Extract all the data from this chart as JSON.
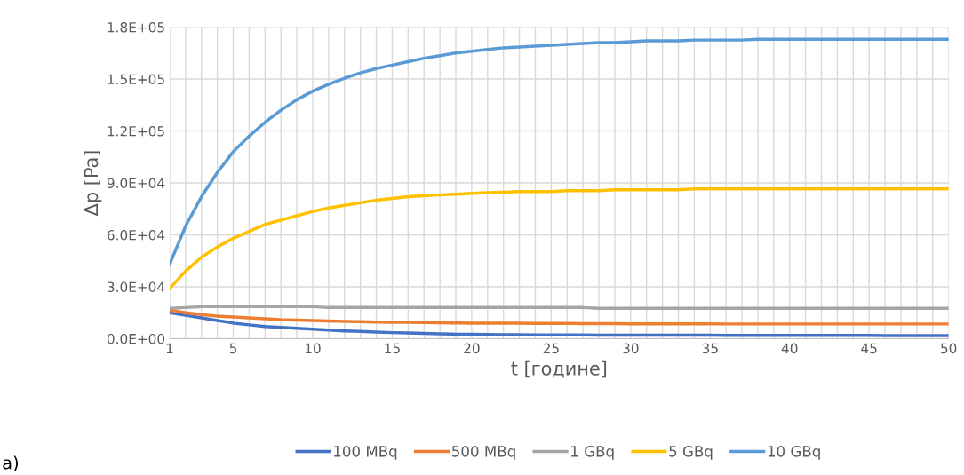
{
  "chart_data": {
    "type": "line",
    "xlabel": "t [године]",
    "ylabel": "Δp [Pa]",
    "categories": [
      "1",
      null,
      null,
      null,
      "5",
      null,
      null,
      null,
      null,
      "10",
      null,
      null,
      null,
      null,
      "15",
      null,
      null,
      null,
      null,
      "20",
      null,
      null,
      null,
      null,
      "25",
      null,
      null,
      null,
      null,
      "30",
      null,
      null,
      null,
      null,
      "35",
      null,
      null,
      null,
      null,
      "40",
      null,
      null,
      null,
      null,
      "45",
      null,
      null,
      null,
      null,
      "50"
    ],
    "ylim": [
      0,
      180000
    ],
    "yticks": [
      {
        "value": 0,
        "label": "0.0E+00"
      },
      {
        "value": 30000,
        "label": "3.0E+04"
      },
      {
        "value": 60000,
        "label": "6.0E+04"
      },
      {
        "value": 90000,
        "label": "9.0E+04"
      },
      {
        "value": 120000,
        "label": "1.2E+05"
      },
      {
        "value": 150000,
        "label": "1.5E+05"
      },
      {
        "value": 180000,
        "label": "1.8E+05"
      }
    ],
    "grid": true,
    "legend": "bottom",
    "marker": "none",
    "line_style": "solid",
    "series": [
      {
        "name": "100 MBq",
        "color": "#4472c4",
        "values": [
          15000,
          13500,
          12000,
          10500,
          9000,
          8000,
          7000,
          6500,
          6000,
          5500,
          5000,
          4500,
          4200,
          3800,
          3500,
          3300,
          3000,
          2800,
          2600,
          2500,
          2400,
          2300,
          2300,
          2200,
          2200,
          2100,
          2100,
          2000,
          2000,
          2000,
          2000,
          2000,
          2000,
          2000,
          2000,
          1900,
          1900,
          1900,
          1900,
          1900,
          1900,
          1900,
          1900,
          1900,
          1900,
          1800,
          1800,
          1800,
          1800,
          1800
        ]
      },
      {
        "name": "500 MBq",
        "color": "#ed7d31",
        "values": [
          16500,
          15000,
          14000,
          13000,
          12500,
          12000,
          11500,
          11000,
          10800,
          10500,
          10200,
          10000,
          9800,
          9600,
          9500,
          9400,
          9300,
          9200,
          9100,
          9000,
          9000,
          8900,
          8900,
          8800,
          8800,
          8800,
          8700,
          8700,
          8700,
          8600,
          8600,
          8600,
          8600,
          8600,
          8600,
          8500,
          8500,
          8500,
          8500,
          8500,
          8500,
          8500,
          8500,
          8500,
          8500,
          8500,
          8500,
          8500,
          8500,
          8500
        ]
      },
      {
        "name": "1 GBq",
        "color": "#a5a5a5",
        "values": [
          17500,
          18000,
          18500,
          18500,
          18500,
          18500,
          18500,
          18500,
          18500,
          18500,
          18000,
          18000,
          18000,
          18000,
          18000,
          18000,
          18000,
          18000,
          18000,
          18000,
          18000,
          18000,
          18000,
          18000,
          18000,
          18000,
          18000,
          17500,
          17500,
          17500,
          17500,
          17500,
          17500,
          17500,
          17500,
          17500,
          17500,
          17500,
          17500,
          17500,
          17500,
          17500,
          17500,
          17500,
          17500,
          17500,
          17500,
          17500,
          17500,
          17500
        ]
      },
      {
        "name": "5 GBq",
        "color": "#ffc000",
        "values": [
          29000,
          39000,
          47000,
          53000,
          58000,
          62000,
          66000,
          68500,
          71000,
          73500,
          75500,
          77000,
          78500,
          80000,
          81000,
          82000,
          82500,
          83000,
          83500,
          84000,
          84300,
          84600,
          85000,
          85000,
          85000,
          85500,
          85500,
          85500,
          86000,
          86000,
          86000,
          86000,
          86000,
          86500,
          86500,
          86500,
          86500,
          86500,
          86500,
          86500,
          86500,
          86500,
          86500,
          86500,
          86500,
          86500,
          86500,
          86500,
          86500,
          86500
        ]
      },
      {
        "name": "10 GBq",
        "color": "#5b9bd5",
        "values": [
          43000,
          65000,
          82000,
          96000,
          108000,
          117000,
          125000,
          132000,
          138000,
          143000,
          147000,
          150500,
          153500,
          156000,
          158000,
          160000,
          162000,
          163500,
          165000,
          166000,
          167000,
          168000,
          168500,
          169000,
          169500,
          170000,
          170500,
          171000,
          171000,
          171500,
          172000,
          172000,
          172000,
          172500,
          172500,
          172500,
          172500,
          173000,
          173000,
          173000,
          173000,
          173000,
          173000,
          173000,
          173000,
          173000,
          173000,
          173000,
          173000,
          173000
        ]
      }
    ],
    "annotations": [
      "a)"
    ]
  }
}
